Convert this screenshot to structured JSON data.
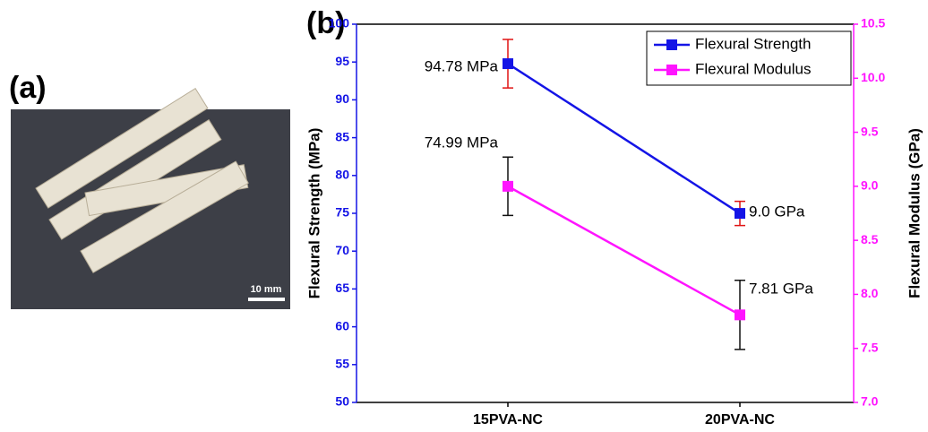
{
  "panel_labels": [
    "(a)",
    "(b)"
  ],
  "photo": {
    "scale_bar_label": "10 mm"
  },
  "chart_data": {
    "type": "line",
    "categories": [
      "15PVA-NC",
      "20PVA-NC"
    ],
    "y_label": "Flexural Strength (MPa)",
    "y2_label": "Flexural Modulus (GPa)",
    "ylim": [
      50,
      100
    ],
    "yticks": [
      50,
      55,
      60,
      65,
      70,
      75,
      80,
      85,
      90,
      95,
      100
    ],
    "y2lim": [
      7.0,
      10.5
    ],
    "y2ticks": [
      {
        "value": 7,
        "label": "7.0"
      },
      7.5,
      {
        "value": 8,
        "label": "8.0"
      },
      8.5,
      {
        "value": 9,
        "label": "9.0"
      },
      9.5,
      {
        "value": 10,
        "label": "10.0"
      },
      10.5
    ],
    "legend": "upper right",
    "series": [
      {
        "name": "Flexural Strength",
        "color": "#1414e6",
        "error_color": "#e01414",
        "values": [
          94.78,
          74.99
        ],
        "errors": [
          3.2,
          1.6
        ],
        "value_labels": [
          "94.78 MPa",
          "74.99 MPa"
        ]
      },
      {
        "name": "Flexural Modulus",
        "color": "#ff14ff",
        "error_color": "#111111",
        "axis": "y2",
        "values": [
          9.0,
          7.81
        ],
        "errors": [
          0.27,
          0.32
        ],
        "value_labels": [
          "9.0 GPa",
          "7.81 GPa"
        ]
      }
    ]
  }
}
